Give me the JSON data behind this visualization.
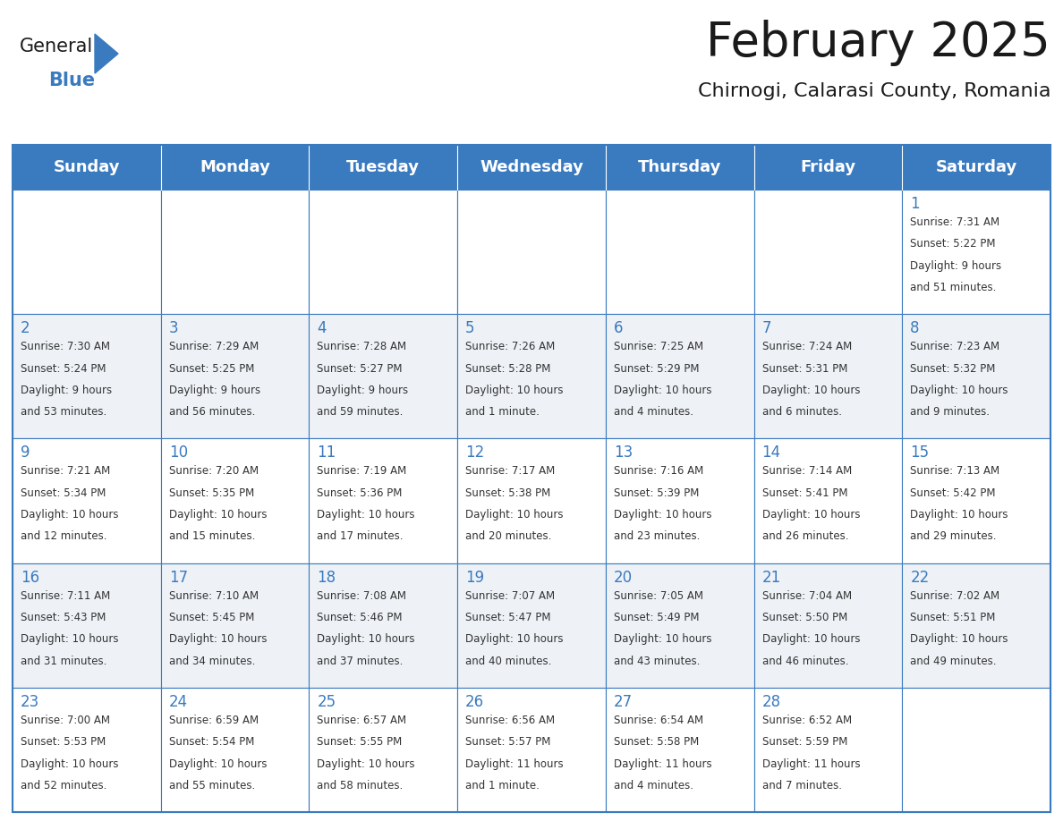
{
  "title": "February 2025",
  "subtitle": "Chirnogi, Calarasi County, Romania",
  "header_bg": "#3a7abf",
  "header_text": "#ffffff",
  "border_color": "#3a7abf",
  "days_of_week": [
    "Sunday",
    "Monday",
    "Tuesday",
    "Wednesday",
    "Thursday",
    "Friday",
    "Saturday"
  ],
  "title_color": "#1a1a1a",
  "subtitle_color": "#1a1a1a",
  "day_num_color": "#3a7abf",
  "info_color": "#333333",
  "calendar": [
    [
      null,
      null,
      null,
      null,
      null,
      null,
      {
        "day": 1,
        "sunrise": "7:31 AM",
        "sunset": "5:22 PM",
        "daylight1": "9 hours",
        "daylight2": "and 51 minutes."
      }
    ],
    [
      {
        "day": 2,
        "sunrise": "7:30 AM",
        "sunset": "5:24 PM",
        "daylight1": "9 hours",
        "daylight2": "and 53 minutes."
      },
      {
        "day": 3,
        "sunrise": "7:29 AM",
        "sunset": "5:25 PM",
        "daylight1": "9 hours",
        "daylight2": "and 56 minutes."
      },
      {
        "day": 4,
        "sunrise": "7:28 AM",
        "sunset": "5:27 PM",
        "daylight1": "9 hours",
        "daylight2": "and 59 minutes."
      },
      {
        "day": 5,
        "sunrise": "7:26 AM",
        "sunset": "5:28 PM",
        "daylight1": "10 hours",
        "daylight2": "and 1 minute."
      },
      {
        "day": 6,
        "sunrise": "7:25 AM",
        "sunset": "5:29 PM",
        "daylight1": "10 hours",
        "daylight2": "and 4 minutes."
      },
      {
        "day": 7,
        "sunrise": "7:24 AM",
        "sunset": "5:31 PM",
        "daylight1": "10 hours",
        "daylight2": "and 6 minutes."
      },
      {
        "day": 8,
        "sunrise": "7:23 AM",
        "sunset": "5:32 PM",
        "daylight1": "10 hours",
        "daylight2": "and 9 minutes."
      }
    ],
    [
      {
        "day": 9,
        "sunrise": "7:21 AM",
        "sunset": "5:34 PM",
        "daylight1": "10 hours",
        "daylight2": "and 12 minutes."
      },
      {
        "day": 10,
        "sunrise": "7:20 AM",
        "sunset": "5:35 PM",
        "daylight1": "10 hours",
        "daylight2": "and 15 minutes."
      },
      {
        "day": 11,
        "sunrise": "7:19 AM",
        "sunset": "5:36 PM",
        "daylight1": "10 hours",
        "daylight2": "and 17 minutes."
      },
      {
        "day": 12,
        "sunrise": "7:17 AM",
        "sunset": "5:38 PM",
        "daylight1": "10 hours",
        "daylight2": "and 20 minutes."
      },
      {
        "day": 13,
        "sunrise": "7:16 AM",
        "sunset": "5:39 PM",
        "daylight1": "10 hours",
        "daylight2": "and 23 minutes."
      },
      {
        "day": 14,
        "sunrise": "7:14 AM",
        "sunset": "5:41 PM",
        "daylight1": "10 hours",
        "daylight2": "and 26 minutes."
      },
      {
        "day": 15,
        "sunrise": "7:13 AM",
        "sunset": "5:42 PM",
        "daylight1": "10 hours",
        "daylight2": "and 29 minutes."
      }
    ],
    [
      {
        "day": 16,
        "sunrise": "7:11 AM",
        "sunset": "5:43 PM",
        "daylight1": "10 hours",
        "daylight2": "and 31 minutes."
      },
      {
        "day": 17,
        "sunrise": "7:10 AM",
        "sunset": "5:45 PM",
        "daylight1": "10 hours",
        "daylight2": "and 34 minutes."
      },
      {
        "day": 18,
        "sunrise": "7:08 AM",
        "sunset": "5:46 PM",
        "daylight1": "10 hours",
        "daylight2": "and 37 minutes."
      },
      {
        "day": 19,
        "sunrise": "7:07 AM",
        "sunset": "5:47 PM",
        "daylight1": "10 hours",
        "daylight2": "and 40 minutes."
      },
      {
        "day": 20,
        "sunrise": "7:05 AM",
        "sunset": "5:49 PM",
        "daylight1": "10 hours",
        "daylight2": "and 43 minutes."
      },
      {
        "day": 21,
        "sunrise": "7:04 AM",
        "sunset": "5:50 PM",
        "daylight1": "10 hours",
        "daylight2": "and 46 minutes."
      },
      {
        "day": 22,
        "sunrise": "7:02 AM",
        "sunset": "5:51 PM",
        "daylight1": "10 hours",
        "daylight2": "and 49 minutes."
      }
    ],
    [
      {
        "day": 23,
        "sunrise": "7:00 AM",
        "sunset": "5:53 PM",
        "daylight1": "10 hours",
        "daylight2": "and 52 minutes."
      },
      {
        "day": 24,
        "sunrise": "6:59 AM",
        "sunset": "5:54 PM",
        "daylight1": "10 hours",
        "daylight2": "and 55 minutes."
      },
      {
        "day": 25,
        "sunrise": "6:57 AM",
        "sunset": "5:55 PM",
        "daylight1": "10 hours",
        "daylight2": "and 58 minutes."
      },
      {
        "day": 26,
        "sunrise": "6:56 AM",
        "sunset": "5:57 PM",
        "daylight1": "11 hours",
        "daylight2": "and 1 minute."
      },
      {
        "day": 27,
        "sunrise": "6:54 AM",
        "sunset": "5:58 PM",
        "daylight1": "11 hours",
        "daylight2": "and 4 minutes."
      },
      {
        "day": 28,
        "sunrise": "6:52 AM",
        "sunset": "5:59 PM",
        "daylight1": "11 hours",
        "daylight2": "and 7 minutes."
      },
      null
    ]
  ],
  "logo_general_color": "#1a1a1a",
  "logo_blue_color": "#3a7abf",
  "row_colors": [
    "#ffffff",
    "#eef2f7",
    "#ffffff",
    "#eef2f7",
    "#ffffff"
  ]
}
